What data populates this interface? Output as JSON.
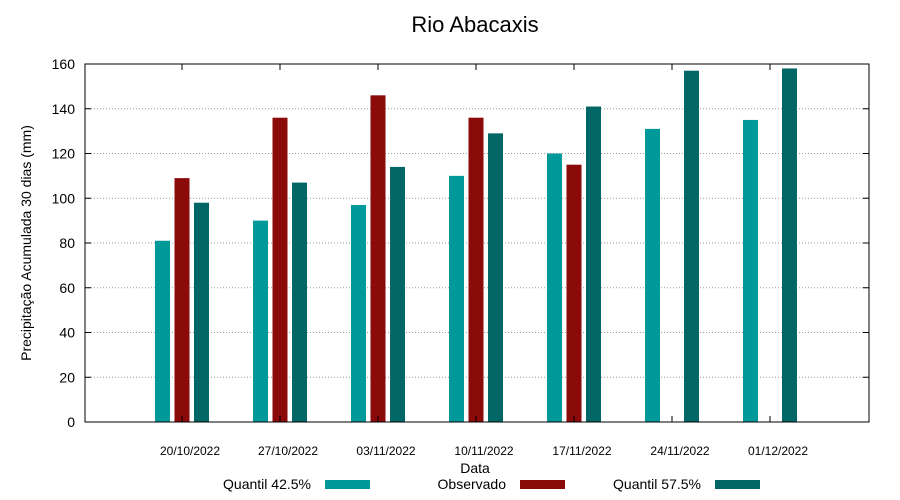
{
  "chart_data": {
    "type": "bar",
    "title": "Rio Abacaxis",
    "xlabel": "Data",
    "ylabel": "Precipitação Acumulada 30 dias (mm)",
    "ylim": [
      0,
      160
    ],
    "yticks": [
      "0",
      "20",
      "40",
      "60",
      "80",
      "100",
      "120",
      "140",
      "160"
    ],
    "grid": true,
    "legend_position": "bottom",
    "categories": [
      "20/10/2022",
      "27/10/2022",
      "03/11/2022",
      "10/11/2022",
      "17/11/2022",
      "24/11/2022",
      "01/12/2022"
    ],
    "series": [
      {
        "name": "Quantil 42.5%",
        "color": "#009999",
        "values": [
          81,
          90,
          97,
          110,
          120,
          131,
          135
        ]
      },
      {
        "name": "Observado",
        "color": "#8b0a0a",
        "values": [
          109,
          136,
          146,
          136,
          115,
          null,
          null
        ]
      },
      {
        "name": "Quantil 57.5%",
        "color": "#006666",
        "values": [
          98,
          107,
          114,
          129,
          141,
          157,
          158
        ]
      }
    ]
  }
}
